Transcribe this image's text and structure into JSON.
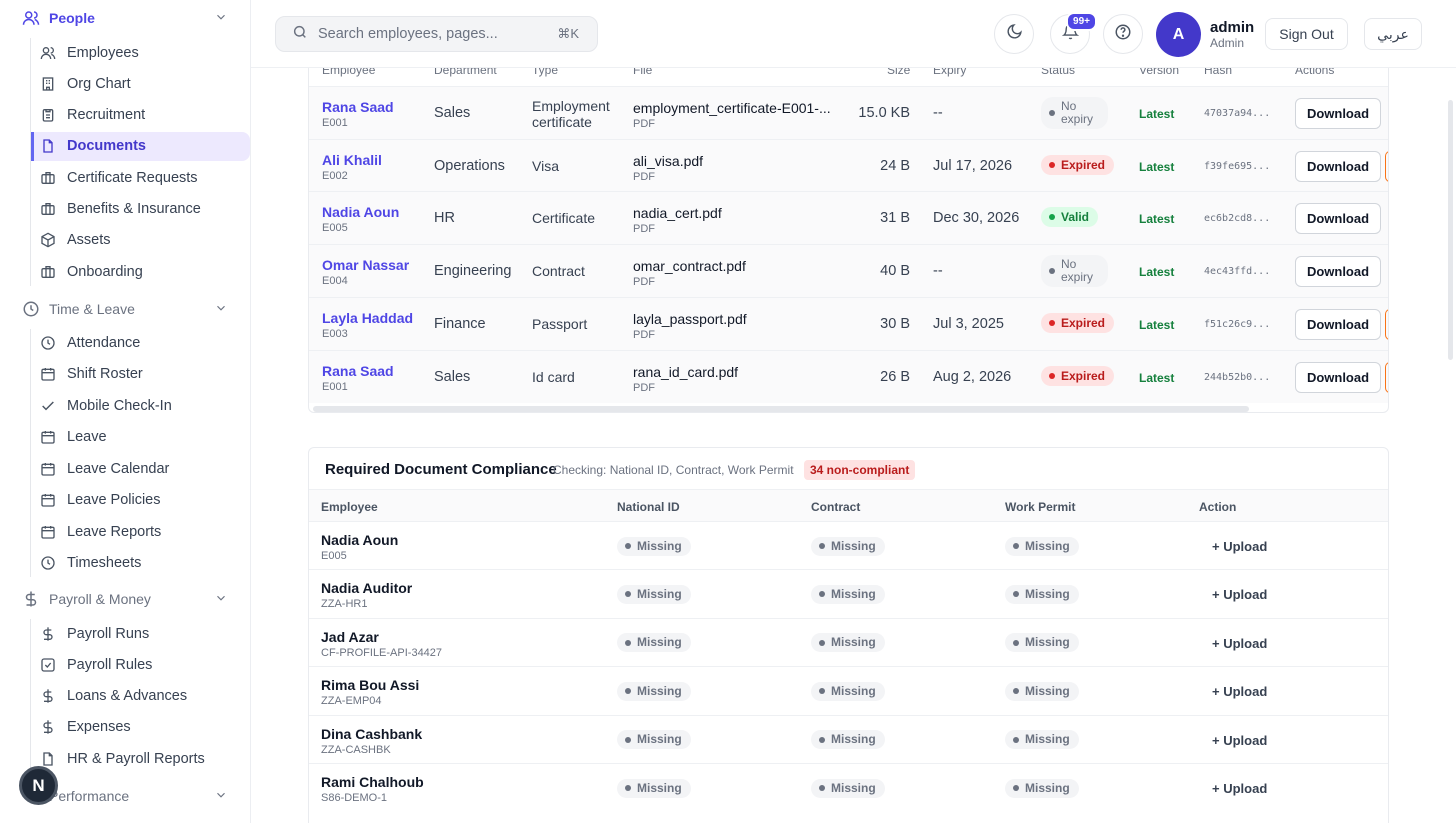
{
  "sidebar": {
    "people": {
      "label": "People",
      "items": [
        {
          "label": "Employees",
          "icon": "users-icon"
        },
        {
          "label": "Org Chart",
          "icon": "building-icon"
        },
        {
          "label": "Recruitment",
          "icon": "clipboard-icon"
        },
        {
          "label": "Documents",
          "icon": "file-icon"
        },
        {
          "label": "Certificate Requests",
          "icon": "briefcase-icon"
        },
        {
          "label": "Benefits & Insurance",
          "icon": "briefcase-icon"
        },
        {
          "label": "Assets",
          "icon": "box-icon"
        },
        {
          "label": "Onboarding",
          "icon": "briefcase-icon"
        }
      ]
    },
    "time_leave": {
      "label": "Time & Leave",
      "items": [
        {
          "label": "Attendance",
          "icon": "clock-icon"
        },
        {
          "label": "Shift Roster",
          "icon": "calendar-icon"
        },
        {
          "label": "Mobile Check-In",
          "icon": "check-icon"
        },
        {
          "label": "Leave",
          "icon": "calendar-icon"
        },
        {
          "label": "Leave Calendar",
          "icon": "calendar-icon"
        },
        {
          "label": "Leave Policies",
          "icon": "calendar-icon"
        },
        {
          "label": "Leave Reports",
          "icon": "calendar-icon"
        },
        {
          "label": "Timesheets",
          "icon": "clock-icon"
        }
      ]
    },
    "payroll": {
      "label": "Payroll & Money",
      "items": [
        {
          "label": "Payroll Runs",
          "icon": "dollar-icon"
        },
        {
          "label": "Payroll Rules",
          "icon": "checkbox-icon"
        },
        {
          "label": "Loans & Advances",
          "icon": "dollar-icon"
        },
        {
          "label": "Expenses",
          "icon": "dollar-icon"
        },
        {
          "label": "HR & Payroll Reports",
          "icon": "file-icon"
        }
      ]
    },
    "performance": {
      "label": "Performance"
    },
    "bottom_badge": "N"
  },
  "topbar": {
    "search_placeholder": "Search employees, pages...",
    "shortcut": "⌘K",
    "notif_count": "99+",
    "avatar_letter": "A",
    "user_name": "admin",
    "user_role": "Admin",
    "sign_out": "Sign Out",
    "language": "عربي"
  },
  "documents": {
    "headers": {
      "employee": "Employee",
      "department": "Department",
      "type": "Type",
      "file": "File",
      "size": "Size",
      "expiry": "Expiry",
      "status": "Status",
      "version": "Version",
      "hash": "Hash",
      "actions": "Actions"
    },
    "download_label": "Download",
    "rows": [
      {
        "name": "Rana Saad",
        "id": "E001",
        "department": "Sales",
        "type": "Employment certificate",
        "file": "employment_certificate-E001-...",
        "file_type": "PDF",
        "size": "15.0 KB",
        "expiry": "--",
        "status": "No expiry",
        "status_kind": "gray",
        "version": "Latest",
        "hash": "47037a94...",
        "edge": false
      },
      {
        "name": "Ali Khalil",
        "id": "E002",
        "department": "Operations",
        "type": "Visa",
        "file": "ali_visa.pdf",
        "file_type": "PDF",
        "size": "24 B",
        "expiry": "Jul 17, 2026",
        "status": "Expired",
        "status_kind": "red",
        "version": "Latest",
        "hash": "f39fe695...",
        "edge": true
      },
      {
        "name": "Nadia Aoun",
        "id": "E005",
        "department": "HR",
        "type": "Certificate",
        "file": "nadia_cert.pdf",
        "file_type": "PDF",
        "size": "31 B",
        "expiry": "Dec 30, 2026",
        "status": "Valid",
        "status_kind": "green",
        "version": "Latest",
        "hash": "ec6b2cd8...",
        "edge": false
      },
      {
        "name": "Omar Nassar",
        "id": "E004",
        "department": "Engineering",
        "type": "Contract",
        "file": "omar_contract.pdf",
        "file_type": "PDF",
        "size": "40 B",
        "expiry": "--",
        "status": "No expiry",
        "status_kind": "gray",
        "version": "Latest",
        "hash": "4ec43ffd...",
        "edge": false
      },
      {
        "name": "Layla Haddad",
        "id": "E003",
        "department": "Finance",
        "type": "Passport",
        "file": "layla_passport.pdf",
        "file_type": "PDF",
        "size": "30 B",
        "expiry": "Jul 3, 2025",
        "status": "Expired",
        "status_kind": "red",
        "version": "Latest",
        "hash": "f51c26c9...",
        "edge": true
      },
      {
        "name": "Rana Saad",
        "id": "E001",
        "department": "Sales",
        "type": "Id card",
        "file": "rana_id_card.pdf",
        "file_type": "PDF",
        "size": "26 B",
        "expiry": "Aug 2, 2026",
        "status": "Expired",
        "status_kind": "red",
        "version": "Latest",
        "hash": "244b52b0...",
        "edge": true
      }
    ]
  },
  "compliance": {
    "title": "Required Document Compliance",
    "subtitle": "Checking: National ID, Contract, Work Permit",
    "badge": "34 non-compliant",
    "headers": {
      "employee": "Employee",
      "national_id": "National ID",
      "contract": "Contract",
      "work_permit": "Work Permit",
      "action": "Action"
    },
    "missing_label": "Missing",
    "upload_label": "+ Upload",
    "rows": [
      {
        "name": "Nadia Aoun",
        "id": "E005"
      },
      {
        "name": "Nadia Auditor",
        "id": "ZZA-HR1"
      },
      {
        "name": "Jad Azar",
        "id": "CF-PROFILE-API-34427"
      },
      {
        "name": "Rima Bou Assi",
        "id": "ZZA-EMP04"
      },
      {
        "name": "Dina Cashbank",
        "id": "ZZA-CASHBK"
      },
      {
        "name": "Rami Chalhoub",
        "id": "S86-DEMO-1"
      }
    ]
  },
  "colors": {
    "accent": "#4f46e5",
    "expired": "#b91c1c",
    "valid": "#15803d"
  }
}
